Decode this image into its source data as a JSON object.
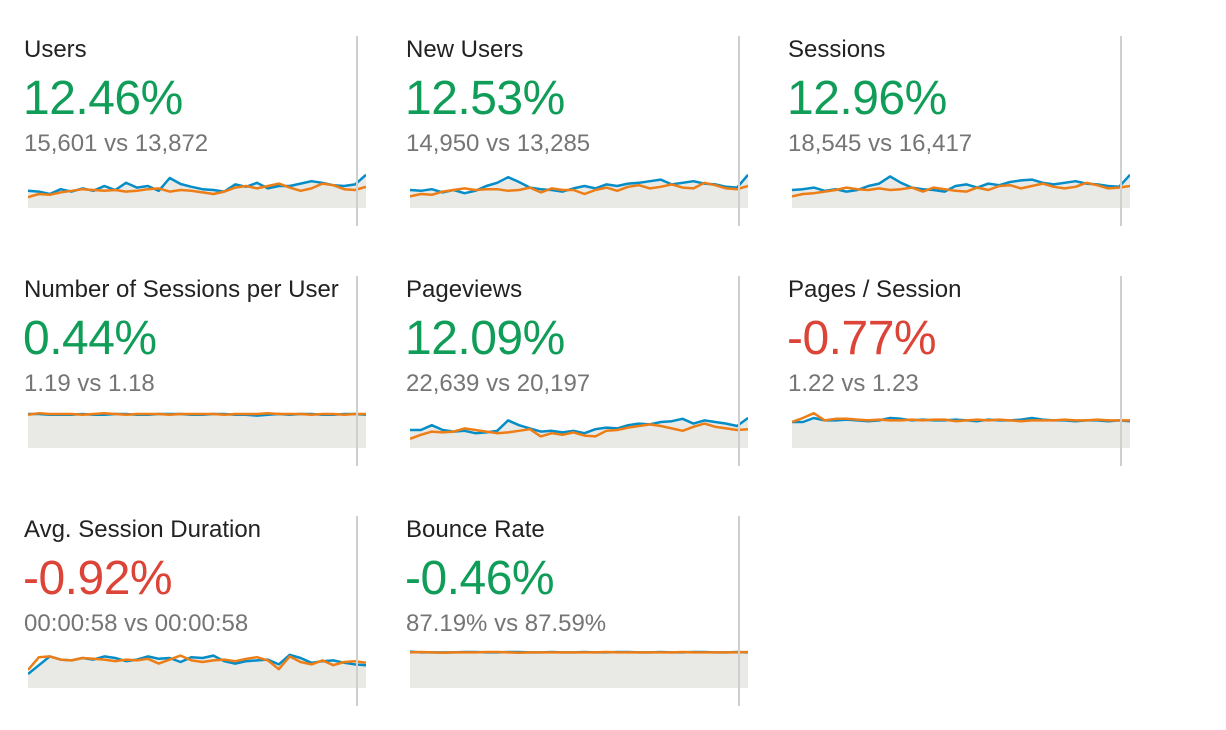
{
  "colors": {
    "positive": "#0f9d58",
    "negative": "#db4437",
    "current_series": "#058dc7",
    "previous_series": "#ed7e17",
    "spark_fill": "#e9e9e6"
  },
  "metrics": [
    {
      "title": "Users",
      "change": "12.46%",
      "trend": "positive",
      "comparison": "15,601 vs 13,872",
      "current": [
        0.62,
        0.64,
        0.7,
        0.58,
        0.64,
        0.56,
        0.62,
        0.5,
        0.6,
        0.42,
        0.54,
        0.5,
        0.62,
        0.3,
        0.45,
        0.52,
        0.58,
        0.6,
        0.64,
        0.46,
        0.52,
        0.42,
        0.56,
        0.5,
        0.5,
        0.44,
        0.38,
        0.42,
        0.48,
        0.5,
        0.46,
        0.22
      ],
      "previous": [
        0.78,
        0.7,
        0.72,
        0.66,
        0.62,
        0.58,
        0.6,
        0.62,
        0.6,
        0.64,
        0.62,
        0.58,
        0.56,
        0.64,
        0.6,
        0.62,
        0.66,
        0.7,
        0.64,
        0.54,
        0.5,
        0.56,
        0.5,
        0.44,
        0.54,
        0.62,
        0.56,
        0.44,
        0.48,
        0.58,
        0.6,
        0.52
      ]
    },
    {
      "title": "New Users",
      "change": "12.53%",
      "trend": "positive",
      "comparison": "14,950 vs 13,285",
      "current": [
        0.6,
        0.62,
        0.58,
        0.66,
        0.6,
        0.68,
        0.62,
        0.5,
        0.42,
        0.28,
        0.4,
        0.54,
        0.58,
        0.6,
        0.64,
        0.56,
        0.5,
        0.56,
        0.46,
        0.5,
        0.44,
        0.42,
        0.38,
        0.34,
        0.46,
        0.42,
        0.38,
        0.44,
        0.46,
        0.52,
        0.54,
        0.22
      ],
      "previous": [
        0.76,
        0.7,
        0.72,
        0.64,
        0.6,
        0.56,
        0.6,
        0.58,
        0.58,
        0.62,
        0.6,
        0.54,
        0.66,
        0.56,
        0.6,
        0.6,
        0.7,
        0.6,
        0.54,
        0.62,
        0.52,
        0.48,
        0.56,
        0.52,
        0.46,
        0.54,
        0.56,
        0.42,
        0.48,
        0.56,
        0.58,
        0.5
      ]
    },
    {
      "title": "Sessions",
      "change": "12.96%",
      "trend": "positive",
      "comparison": "18,545 vs 16,417",
      "current": [
        0.6,
        0.58,
        0.54,
        0.62,
        0.58,
        0.64,
        0.6,
        0.5,
        0.44,
        0.26,
        0.42,
        0.54,
        0.58,
        0.6,
        0.64,
        0.5,
        0.46,
        0.54,
        0.44,
        0.48,
        0.4,
        0.36,
        0.34,
        0.42,
        0.46,
        0.42,
        0.38,
        0.44,
        0.46,
        0.5,
        0.52,
        0.22
      ],
      "previous": [
        0.76,
        0.7,
        0.68,
        0.64,
        0.6,
        0.54,
        0.58,
        0.6,
        0.56,
        0.6,
        0.58,
        0.54,
        0.64,
        0.54,
        0.58,
        0.62,
        0.64,
        0.54,
        0.6,
        0.5,
        0.48,
        0.56,
        0.5,
        0.44,
        0.52,
        0.56,
        0.52,
        0.42,
        0.48,
        0.56,
        0.54,
        0.5
      ]
    },
    {
      "title": "Number of Sessions per User",
      "change": "0.44%",
      "trend": "positive",
      "comparison": "1.19 vs 1.18",
      "current": [
        0.2,
        0.2,
        0.22,
        0.22,
        0.22,
        0.2,
        0.22,
        0.22,
        0.2,
        0.2,
        0.22,
        0.22,
        0.2,
        0.2,
        0.2,
        0.22,
        0.22,
        0.2,
        0.2,
        0.22,
        0.22,
        0.24,
        0.22,
        0.2,
        0.22,
        0.2,
        0.2,
        0.22,
        0.22,
        0.2,
        0.2,
        0.22
      ],
      "previous": [
        0.22,
        0.18,
        0.2,
        0.2,
        0.2,
        0.22,
        0.2,
        0.18,
        0.2,
        0.22,
        0.2,
        0.2,
        0.2,
        0.22,
        0.2,
        0.2,
        0.2,
        0.2,
        0.22,
        0.2,
        0.2,
        0.2,
        0.18,
        0.2,
        0.2,
        0.2,
        0.22,
        0.2,
        0.2,
        0.22,
        0.2,
        0.2
      ]
    },
    {
      "title": "Pageviews",
      "change": "12.09%",
      "trend": "positive",
      "comparison": "22,639 vs 20,197",
      "current": [
        0.6,
        0.6,
        0.48,
        0.6,
        0.64,
        0.62,
        0.68,
        0.66,
        0.62,
        0.36,
        0.48,
        0.56,
        0.64,
        0.62,
        0.66,
        0.62,
        0.68,
        0.58,
        0.54,
        0.56,
        0.48,
        0.44,
        0.46,
        0.4,
        0.38,
        0.32,
        0.44,
        0.36,
        0.4,
        0.44,
        0.5,
        0.3
      ],
      "previous": [
        0.82,
        0.72,
        0.64,
        0.66,
        0.64,
        0.56,
        0.6,
        0.64,
        0.68,
        0.66,
        0.62,
        0.58,
        0.76,
        0.68,
        0.72,
        0.66,
        0.74,
        0.76,
        0.62,
        0.6,
        0.54,
        0.5,
        0.46,
        0.5,
        0.56,
        0.62,
        0.52,
        0.44,
        0.52,
        0.56,
        0.6,
        0.58
      ]
    },
    {
      "title": "Pages / Session",
      "change": "-0.77%",
      "trend": "negative",
      "comparison": "1.22 vs 1.23",
      "current": [
        0.4,
        0.4,
        0.3,
        0.36,
        0.36,
        0.34,
        0.36,
        0.38,
        0.36,
        0.3,
        0.32,
        0.36,
        0.34,
        0.36,
        0.36,
        0.34,
        0.36,
        0.38,
        0.34,
        0.36,
        0.36,
        0.34,
        0.3,
        0.34,
        0.36,
        0.36,
        0.38,
        0.36,
        0.36,
        0.38,
        0.36,
        0.38
      ],
      "previous": [
        0.4,
        0.3,
        0.18,
        0.36,
        0.32,
        0.32,
        0.34,
        0.36,
        0.34,
        0.36,
        0.36,
        0.34,
        0.36,
        0.34,
        0.34,
        0.38,
        0.36,
        0.34,
        0.36,
        0.34,
        0.36,
        0.38,
        0.36,
        0.36,
        0.36,
        0.34,
        0.36,
        0.36,
        0.34,
        0.36,
        0.36,
        0.36
      ]
    },
    {
      "title": "Avg. Session Duration",
      "change": "-0.92%",
      "trend": "negative",
      "comparison": "00:00:58 vs 00:00:58",
      "current": [
        0.7,
        0.48,
        0.26,
        0.34,
        0.36,
        0.3,
        0.34,
        0.26,
        0.3,
        0.38,
        0.34,
        0.26,
        0.32,
        0.3,
        0.4,
        0.28,
        0.3,
        0.24,
        0.38,
        0.44,
        0.38,
        0.36,
        0.34,
        0.46,
        0.22,
        0.3,
        0.42,
        0.38,
        0.36,
        0.42,
        0.46,
        0.48
      ],
      "previous": [
        0.6,
        0.28,
        0.26,
        0.34,
        0.36,
        0.3,
        0.32,
        0.34,
        0.38,
        0.34,
        0.36,
        0.32,
        0.44,
        0.34,
        0.24,
        0.36,
        0.4,
        0.36,
        0.34,
        0.38,
        0.32,
        0.28,
        0.36,
        0.58,
        0.26,
        0.4,
        0.46,
        0.36,
        0.48,
        0.4,
        0.38,
        0.42
      ]
    },
    {
      "title": "Bounce Rate",
      "change": "-0.46%",
      "trend": "positive",
      "comparison": "87.19% vs 87.59%",
      "current": [
        0.14,
        0.16,
        0.16,
        0.16,
        0.16,
        0.15,
        0.15,
        0.16,
        0.16,
        0.15,
        0.15,
        0.16,
        0.16,
        0.15,
        0.16,
        0.16,
        0.15,
        0.16,
        0.16,
        0.15,
        0.15,
        0.16,
        0.16,
        0.15,
        0.16,
        0.16,
        0.15,
        0.15,
        0.16,
        0.16,
        0.15,
        0.16
      ],
      "previous": [
        0.16,
        0.15,
        0.16,
        0.17,
        0.16,
        0.16,
        0.16,
        0.15,
        0.15,
        0.16,
        0.17,
        0.16,
        0.16,
        0.16,
        0.16,
        0.16,
        0.16,
        0.16,
        0.15,
        0.16,
        0.16,
        0.16,
        0.16,
        0.16,
        0.16,
        0.15,
        0.16,
        0.16,
        0.16,
        0.16,
        0.16,
        0.15
      ]
    }
  ]
}
